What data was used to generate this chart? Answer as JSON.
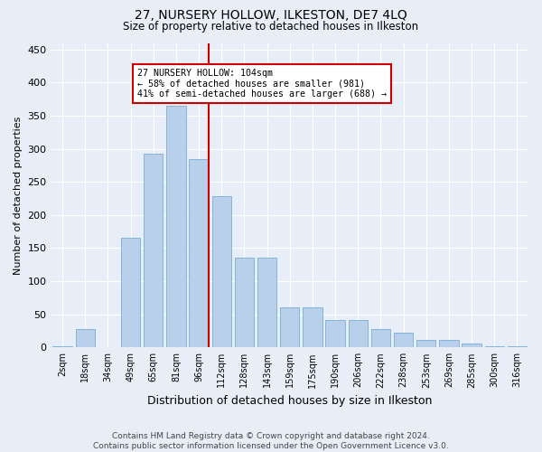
{
  "title": "27, NURSERY HOLLOW, ILKESTON, DE7 4LQ",
  "subtitle": "Size of property relative to detached houses in Ilkeston",
  "xlabel": "Distribution of detached houses by size in Ilkeston",
  "ylabel": "Number of detached properties",
  "categories": [
    "2sqm",
    "18sqm",
    "34sqm",
    "49sqm",
    "65sqm",
    "81sqm",
    "96sqm",
    "112sqm",
    "128sqm",
    "143sqm",
    "159sqm",
    "175sqm",
    "190sqm",
    "206sqm",
    "222sqm",
    "238sqm",
    "253sqm",
    "269sqm",
    "285sqm",
    "300sqm",
    "316sqm"
  ],
  "values": [
    2,
    28,
    0,
    165,
    293,
    365,
    285,
    228,
    135,
    135,
    60,
    60,
    42,
    42,
    28,
    22,
    12,
    12,
    6,
    2,
    2
  ],
  "bar_color": "#b8d0ea",
  "bar_edge_color": "#7aaed6",
  "property_line_color": "#cc0000",
  "annotation_text": "27 NURSERY HOLLOW: 104sqm\n← 58% of detached houses are smaller (981)\n41% of semi-detached houses are larger (688) →",
  "annotation_box_facecolor": "#ffffff",
  "annotation_box_edgecolor": "#cc0000",
  "ylim": [
    0,
    460
  ],
  "yticks": [
    0,
    50,
    100,
    150,
    200,
    250,
    300,
    350,
    400,
    450
  ],
  "footer_line1": "Contains HM Land Registry data © Crown copyright and database right 2024.",
  "footer_line2": "Contains public sector information licensed under the Open Government Licence v3.0.",
  "bg_color": "#e8eef7",
  "grid_color": "#ffffff"
}
